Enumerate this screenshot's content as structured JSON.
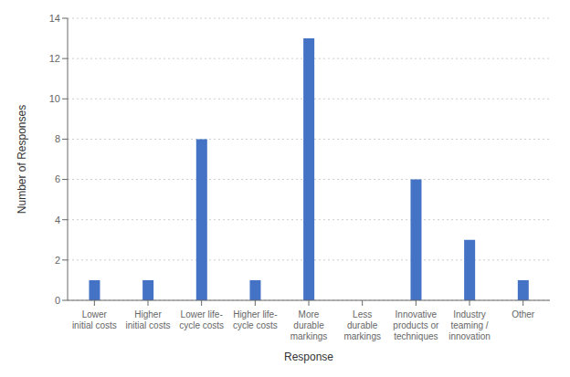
{
  "chart_data": {
    "type": "bar",
    "categories": [
      "Lower\ninitial costs",
      "Higher\ninitial costs",
      "Lower life-\ncycle costs",
      "Higher life-\ncycle costs",
      "More\ndurable\nmarkings",
      "Less\ndurable\nmarkings",
      "Innovative\nproducts or\ntechniques",
      "Industry\nteaming /\ninnovation",
      "Other"
    ],
    "values": [
      1,
      1,
      8,
      1,
      13,
      0,
      6,
      3,
      1
    ],
    "color": "#4472C4",
    "xlabel": "Response",
    "ylabel": "Number of Responses",
    "ylim": [
      0,
      14
    ],
    "yticks": [
      0,
      2,
      4,
      6,
      8,
      10,
      12,
      14
    ],
    "grid": true
  }
}
